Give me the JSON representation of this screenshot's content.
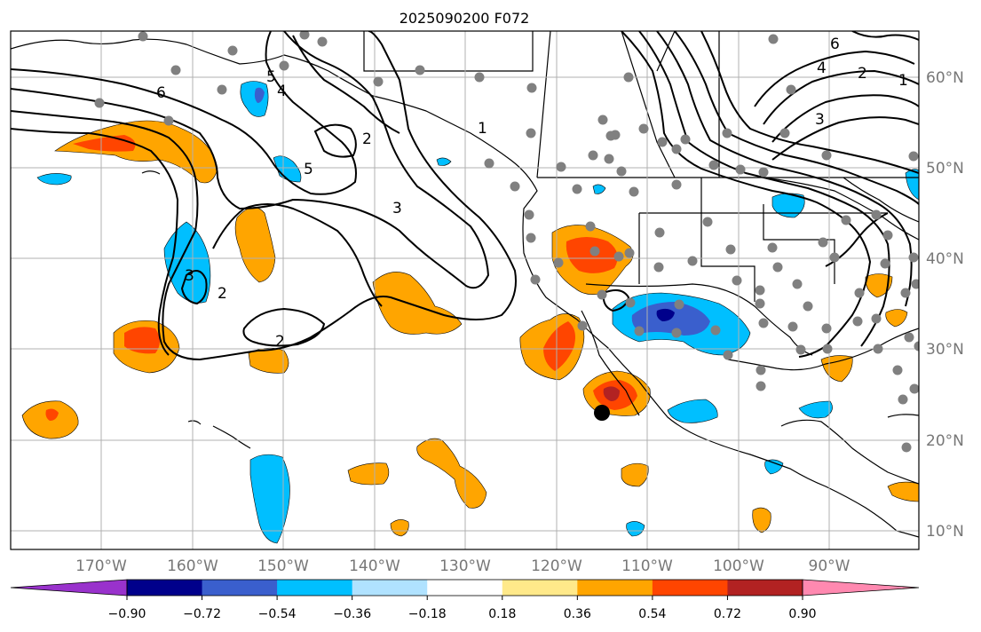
{
  "map": {
    "title": "2025090200 F072",
    "lon_labels": [
      "170°W",
      "160°W",
      "150°W",
      "140°W",
      "130°W",
      "120°W",
      "110°W",
      "100°W",
      "90°W"
    ],
    "lat_labels": [
      "60°N",
      "50°N",
      "40°N",
      "30°N",
      "20°N",
      "10°N"
    ],
    "contour_labels": [
      "6",
      "5",
      "4",
      "2",
      "5",
      "3",
      "3",
      "2",
      "2",
      "3",
      "4",
      "6",
      "2",
      "1",
      "1"
    ]
  },
  "colorbar": {
    "ticks": [
      "−0.90",
      "−0.72",
      "−0.54",
      "−0.36",
      "−0.18",
      "0.18",
      "0.36",
      "0.54",
      "0.72",
      "0.90"
    ],
    "colors": [
      "#9932cc",
      "#00008b",
      "#3a5fcd",
      "#00bfff",
      "#b0e2ff",
      "#ffffff",
      "#ffe98a",
      "#ffa500",
      "#ff4500",
      "#b22222",
      "#ff89b0"
    ]
  },
  "colors": {
    "frame": "#000000",
    "grid": "#b0b0b0",
    "station": "#808080",
    "marker": "#000000"
  }
}
